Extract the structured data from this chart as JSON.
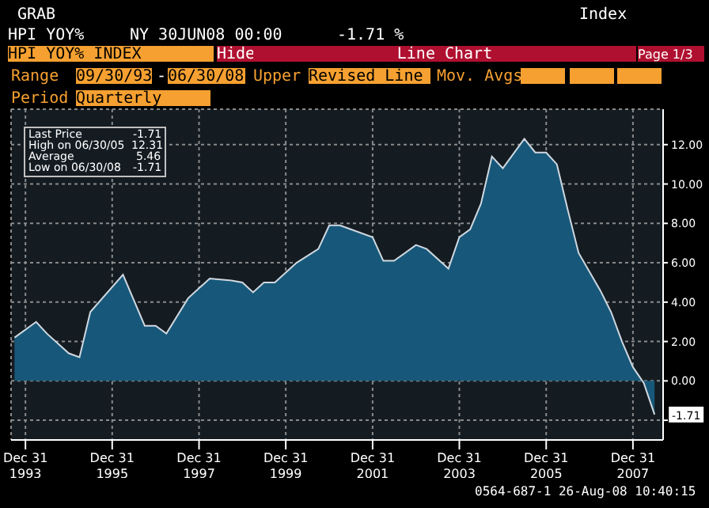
{
  "chart_data": {
    "type": "area",
    "title": "HPI YOY%",
    "x": [
      "1993-09-30",
      "1994-03-31",
      "1994-06-30",
      "1994-12-31",
      "1995-03-31",
      "1995-06-30",
      "1996-03-31",
      "1996-09-30",
      "1996-12-31",
      "1997-03-31",
      "1997-09-30",
      "1998-03-31",
      "1998-09-30",
      "1998-12-31",
      "1999-03-31",
      "1999-06-30",
      "1999-09-30",
      "2000-03-31",
      "2000-09-30",
      "2000-12-31",
      "2001-03-31",
      "2001-06-30",
      "2001-12-31",
      "2002-03-31",
      "2002-06-30",
      "2002-12-31",
      "2003-03-31",
      "2003-09-30",
      "2003-12-31",
      "2004-03-31",
      "2004-06-30",
      "2004-09-30",
      "2004-12-31",
      "2005-06-30",
      "2005-09-30",
      "2005-12-31",
      "2006-03-31",
      "2006-06-30",
      "2006-09-30",
      "2007-03-31",
      "2007-06-30",
      "2007-09-30",
      "2007-12-31",
      "2008-03-31",
      "2008-06-30"
    ],
    "series": [
      {
        "color": "#d0d8e0",
        "values": [
          2.2,
          3.0,
          2.4,
          1.4,
          1.2,
          3.5,
          5.4,
          2.8,
          2.8,
          2.4,
          4.2,
          5.2,
          5.1,
          5.0,
          4.5,
          5.0,
          5.0,
          6.0,
          6.7,
          7.9,
          7.9,
          7.7,
          7.3,
          6.1,
          6.1,
          6.9,
          6.7,
          5.7,
          7.3,
          7.7,
          9.0,
          11.4,
          10.8,
          12.3,
          11.6,
          11.6,
          11.0,
          8.7,
          6.5,
          4.6,
          3.5,
          2.0,
          0.7,
          -0.1,
          -1.71
        ]
      }
    ],
    "xlim": [
      "1993-09-01",
      "2008-09-10"
    ],
    "xticks": [
      {
        "value": "1993-12-31",
        "label": "Dec 31\n1993"
      },
      {
        "value": "1995-12-31",
        "label": "Dec 31\n1995"
      },
      {
        "value": "1997-12-31",
        "label": "Dec 31\n1997"
      },
      {
        "value": "1999-12-31",
        "label": "Dec 31\n1999"
      },
      {
        "value": "2001-12-31",
        "label": "Dec 31\n2001"
      },
      {
        "value": "2003-12-31",
        "label": "Dec 31\n2003"
      },
      {
        "value": "2005-12-31",
        "label": "Dec 31\n2005"
      },
      {
        "value": "2007-12-31",
        "label": "Dec 31\n2007"
      }
    ],
    "ylim": [
      -3,
      13.8
    ],
    "yticks": [
      {
        "value": -2,
        "label": null
      },
      {
        "value": 0,
        "label": "0.00"
      },
      {
        "value": 2,
        "label": "2.00"
      },
      {
        "value": 4,
        "label": "4.00"
      },
      {
        "value": 6,
        "label": "6.00"
      },
      {
        "value": 8,
        "label": "8.00"
      },
      {
        "value": 10,
        "label": "10.00"
      },
      {
        "value": 12,
        "label": "12.00"
      }
    ],
    "grid": true,
    "annotations": [
      "GRAB",
      "Index",
      "NY 30JUN08 00:00",
      "-1.71 %",
      "HPI YOY% INDEX",
      "Hide",
      "Line Chart",
      "Page 1/3",
      "Range",
      "09/30/93",
      "-",
      "06/30/08",
      "Upper",
      "Revised Line",
      "Mov. Avgs",
      "Period",
      "Quarterly",
      "Last Price",
      "-1.71",
      "High on 06/30/05",
      "12.31",
      "Average",
      "5.46",
      "Low on 06/30/08",
      "-1.71",
      {
        "text": "-1.71",
        "x": "2008-06-30",
        "y": -1.71
      },
      "0564-687-1 26-Aug-08 10:40:15"
    ]
  }
}
